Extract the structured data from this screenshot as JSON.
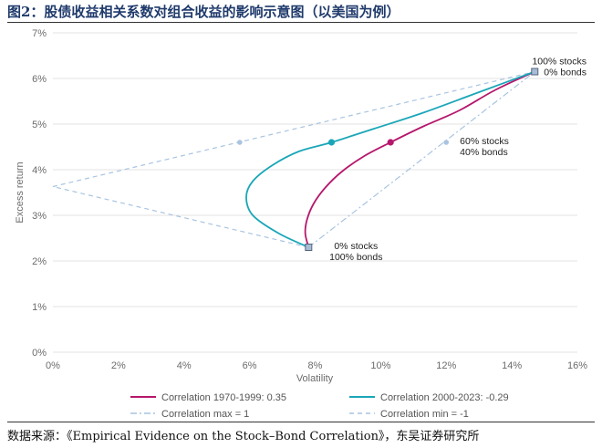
{
  "header": {
    "title": "图2：股债收益相关系数对组合收益的影响示意图（以美国为例）"
  },
  "footer": {
    "source": "数据来源：《Empirical Evidence on the Stock–Bond Correlation》，东吴证券研究所"
  },
  "colors": {
    "series_1970": "#b5176c",
    "series_2000": "#1aa6b8",
    "dashed_lines": "#a9c4e0",
    "grid": "#e3e3e3",
    "endpoint_marker": "#a9bcd6"
  },
  "chart_data": {
    "type": "line",
    "title": "",
    "xlabel": "Volatility",
    "ylabel": "Excess return",
    "xlim": [
      0,
      16
    ],
    "ylim": [
      0,
      7
    ],
    "x_ticks": [
      "0%",
      "2%",
      "4%",
      "6%",
      "8%",
      "10%",
      "12%",
      "14%",
      "16%"
    ],
    "y_ticks": [
      "0%",
      "1%",
      "2%",
      "3%",
      "4%",
      "5%",
      "6%",
      "7%"
    ],
    "grid": "horizontal",
    "legend_position": "bottom",
    "series": [
      {
        "name": "Correlation 1970-1999: 0.35",
        "style": "solid",
        "color": "#b5176c",
        "points": [
          [
            7.8,
            2.3
          ],
          [
            7.7,
            2.6
          ],
          [
            7.75,
            2.9
          ],
          [
            7.95,
            3.25
          ],
          [
            8.3,
            3.6
          ],
          [
            8.8,
            3.95
          ],
          [
            9.5,
            4.3
          ],
          [
            10.3,
            4.6
          ],
          [
            11.3,
            4.95
          ],
          [
            12.4,
            5.3
          ],
          [
            13.5,
            5.75
          ],
          [
            14.7,
            6.15
          ]
        ],
        "marker": {
          "x": 10.3,
          "y": 4.6
        }
      },
      {
        "name": "Correlation 2000-2023: -0.29",
        "style": "solid",
        "color": "#1aa6b8",
        "points": [
          [
            7.8,
            2.3
          ],
          [
            6.9,
            2.6
          ],
          [
            6.1,
            3.0
          ],
          [
            5.9,
            3.4
          ],
          [
            6.1,
            3.75
          ],
          [
            6.7,
            4.1
          ],
          [
            7.5,
            4.4
          ],
          [
            8.5,
            4.6
          ],
          [
            9.8,
            4.9
          ],
          [
            11.3,
            5.25
          ],
          [
            13.0,
            5.7
          ],
          [
            14.7,
            6.15
          ]
        ],
        "marker": {
          "x": 8.5,
          "y": 4.6
        }
      },
      {
        "name": "Correlation max = 1",
        "style": "dash-dot",
        "color": "#a9c4e0",
        "points": [
          [
            7.8,
            2.3
          ],
          [
            14.7,
            6.15
          ]
        ],
        "marker": {
          "x": 12.0,
          "y": 4.6
        }
      },
      {
        "name": "Correlation min = -1",
        "style": "dashed",
        "color": "#a9c4e0",
        "points": [
          [
            7.8,
            2.3
          ],
          [
            0,
            3.63
          ],
          [
            14.7,
            6.15
          ]
        ],
        "marker": {
          "x": 5.7,
          "y": 4.6
        }
      }
    ],
    "endpoints": [
      {
        "x": 14.7,
        "y": 6.15,
        "label_lines": [
          "100% stocks",
          "0% bonds"
        ]
      },
      {
        "x": 7.8,
        "y": 2.3,
        "label_lines": [
          "0% stocks",
          "100% bonds"
        ]
      }
    ],
    "annotations": [
      {
        "x": 10.3,
        "y": 4.6,
        "label_lines": [
          "60% stocks",
          "40% bonds"
        ]
      }
    ]
  }
}
